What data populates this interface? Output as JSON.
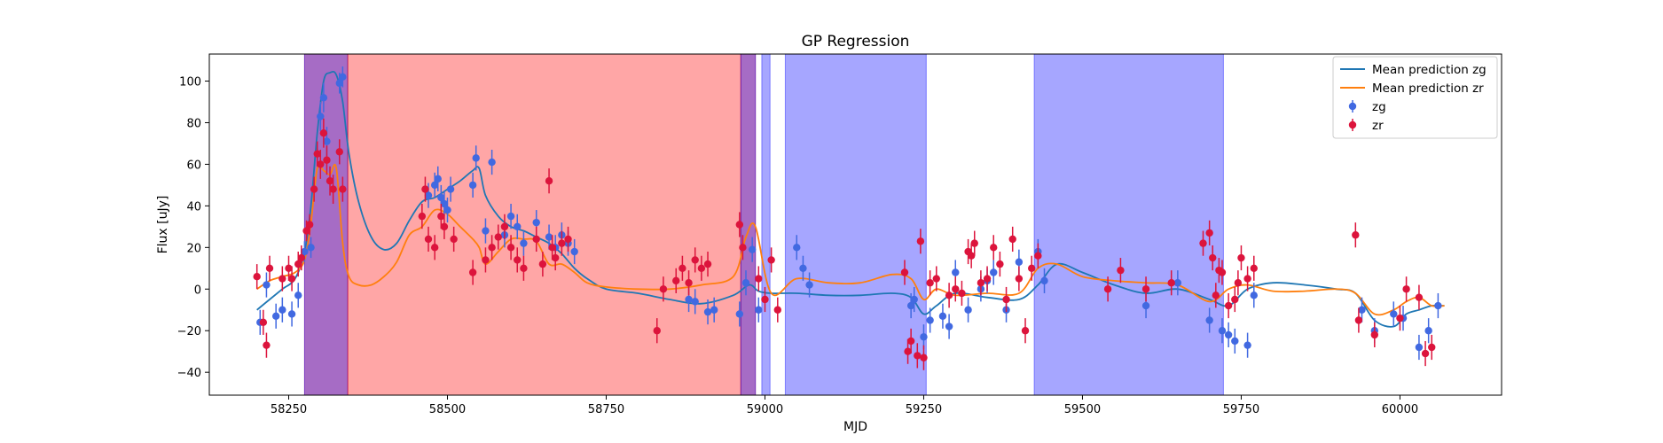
{
  "chart_data": {
    "type": "scatter",
    "title": "GP Regression",
    "xlabel": "MJD",
    "ylabel": "Flux [uJy]",
    "xlim": [
      58125,
      60160
    ],
    "ylim": [
      -51,
      113
    ],
    "x_ticks": [
      58250,
      58500,
      58750,
      59000,
      59250,
      59500,
      59750,
      60000
    ],
    "y_ticks": [
      -40,
      -20,
      0,
      20,
      40,
      60,
      80,
      100
    ],
    "grid": false,
    "legend_position": "upper right",
    "legend": [
      {
        "label": "Mean prediction zg",
        "kind": "line",
        "color": "#1f77b4"
      },
      {
        "label": "Mean prediction zr",
        "kind": "line",
        "color": "#ff7f0e"
      },
      {
        "label": "zg",
        "kind": "errorbar",
        "color": "#4169e1"
      },
      {
        "label": "zr",
        "kind": "errorbar",
        "color": "#dc143c"
      }
    ],
    "shaded_regions": [
      {
        "x0": 58275,
        "x1": 58343,
        "color": "#ff0000",
        "alpha": 0.35
      },
      {
        "x0": 58275,
        "x1": 58343,
        "color": "#0000ff",
        "alpha": 0.35
      },
      {
        "x0": 58343,
        "x1": 58962,
        "color": "#ff0000",
        "alpha": 0.35
      },
      {
        "x0": 58962,
        "x1": 58985,
        "color": "#ff0000",
        "alpha": 0.35
      },
      {
        "x0": 58962,
        "x1": 58985,
        "color": "#0000ff",
        "alpha": 0.35
      },
      {
        "x0": 58995,
        "x1": 59008,
        "color": "#0000ff",
        "alpha": 0.35
      },
      {
        "x0": 59032,
        "x1": 59254,
        "color": "#0000ff",
        "alpha": 0.35
      },
      {
        "x0": 59424,
        "x1": 59722,
        "color": "#0000ff",
        "alpha": 0.35
      }
    ],
    "series": [
      {
        "name": "Mean prediction zg",
        "type": "line",
        "color": "#1f77b4",
        "x": [
          58200,
          58220,
          58240,
          58260,
          58275,
          58285,
          58295,
          58305,
          58315,
          58325,
          58335,
          58345,
          58360,
          58380,
          58400,
          58420,
          58440,
          58460,
          58480,
          58500,
          58520,
          58540,
          58550,
          58560,
          58580,
          58600,
          58620,
          58640,
          58660,
          58680,
          58700,
          58720,
          58750,
          58800,
          58850,
          58900,
          58950,
          58975,
          58990,
          59010,
          59050,
          59100,
          59150,
          59200,
          59230,
          59250,
          59270,
          59300,
          59350,
          59400,
          59430,
          59460,
          59500,
          59550,
          59600,
          59650,
          59700,
          59730,
          59760,
          59800,
          59850,
          59900,
          59930,
          59960,
          59990,
          60010,
          60030,
          60050,
          60070
        ],
        "y": [
          -10,
          -5,
          0,
          5,
          18,
          40,
          75,
          100,
          104,
          103,
          90,
          65,
          42,
          25,
          19,
          22,
          33,
          42,
          44,
          48,
          52,
          57,
          58,
          45,
          35,
          30,
          28,
          25,
          22,
          17,
          10,
          5,
          0,
          -2,
          -5,
          -7,
          -3,
          2,
          -1,
          -2,
          -2,
          -3,
          -3,
          -2,
          -4,
          -12,
          -8,
          -2,
          -4,
          -5,
          2,
          12,
          8,
          2,
          -2,
          0,
          -5,
          -8,
          0,
          3,
          2,
          0,
          -2,
          -15,
          -18,
          -12,
          -10,
          -8,
          -8
        ]
      },
      {
        "name": "Mean prediction zr",
        "type": "line",
        "color": "#ff7f0e",
        "x": [
          58200,
          58220,
          58240,
          58260,
          58275,
          58285,
          58295,
          58305,
          58315,
          58325,
          58335,
          58345,
          58360,
          58380,
          58400,
          58420,
          58440,
          58460,
          58480,
          58500,
          58520,
          58540,
          58550,
          58560,
          58580,
          58600,
          58620,
          58640,
          58660,
          58680,
          58700,
          58720,
          58750,
          58800,
          58850,
          58900,
          58950,
          58970,
          58985,
          59010,
          59050,
          59100,
          59150,
          59200,
          59230,
          59250,
          59270,
          59300,
          59350,
          59400,
          59430,
          59460,
          59500,
          59550,
          59600,
          59650,
          59700,
          59730,
          59760,
          59800,
          59850,
          59900,
          59930,
          59960,
          59990,
          60010,
          60030,
          60050,
          60070
        ],
        "y": [
          0,
          4,
          6,
          8,
          14,
          32,
          58,
          57,
          55,
          58,
          22,
          6,
          2,
          2,
          6,
          13,
          26,
          30,
          38,
          36,
          30,
          24,
          20,
          12,
          18,
          24,
          24,
          23,
          12,
          12,
          8,
          3,
          1,
          0,
          0,
          2,
          6,
          25,
          30,
          -2,
          5,
          3,
          3,
          7,
          5,
          -5,
          0,
          -3,
          -2,
          -2,
          10,
          12,
          6,
          4,
          3,
          2,
          -6,
          0,
          2,
          -1,
          -1,
          0,
          -2,
          -12,
          -10,
          -6,
          -4,
          -8,
          -8
        ]
      },
      {
        "name": "zg",
        "type": "errorbar",
        "color": "#4169e1",
        "x": [
          58205,
          58215,
          58230,
          58240,
          58255,
          58265,
          58275,
          58285,
          58300,
          58305,
          58310,
          58330,
          58335,
          58470,
          58480,
          58485,
          58490,
          58495,
          58500,
          58505,
          58540,
          58545,
          58560,
          58570,
          58590,
          58600,
          58610,
          58620,
          58640,
          58660,
          58670,
          58680,
          58690,
          58700,
          58880,
          58890,
          58910,
          58920,
          58960,
          58970,
          58980,
          58990,
          59050,
          59060,
          59070,
          59230,
          59235,
          59250,
          59260,
          59280,
          59290,
          59300,
          59320,
          59340,
          59350,
          59360,
          59380,
          59400,
          59430,
          59440,
          59600,
          59650,
          59700,
          59720,
          59730,
          59740,
          59760,
          59770,
          59940,
          59960,
          59990,
          60005,
          60030,
          60045,
          60060
        ],
        "y": [
          -16,
          2,
          -13,
          -10,
          -12,
          -3,
          18,
          20,
          83,
          92,
          71,
          99,
          102,
          45,
          50,
          53,
          44,
          41,
          38,
          48,
          50,
          63,
          28,
          61,
          26,
          35,
          30,
          22,
          32,
          25,
          20,
          26,
          22,
          18,
          -5,
          -6,
          -11,
          -10,
          -12,
          3,
          19,
          -10,
          20,
          10,
          2,
          -8,
          -5,
          -23,
          -15,
          -13,
          -18,
          8,
          -10,
          0,
          4,
          8,
          -10,
          13,
          18,
          4,
          -8,
          3,
          -15,
          -20,
          -22,
          -25,
          -27,
          -3,
          -10,
          -20,
          -12,
          -14,
          -28,
          -20,
          -8
        ],
        "err": [
          6,
          6,
          6,
          6,
          6,
          6,
          5,
          5,
          7,
          7,
          7,
          5,
          5,
          6,
          6,
          6,
          6,
          6,
          6,
          6,
          6,
          6,
          6,
          6,
          6,
          6,
          6,
          6,
          6,
          6,
          6,
          6,
          6,
          6,
          6,
          6,
          6,
          6,
          6,
          6,
          6,
          6,
          6,
          6,
          6,
          6,
          6,
          6,
          6,
          6,
          6,
          6,
          6,
          6,
          6,
          6,
          6,
          6,
          6,
          6,
          6,
          6,
          6,
          6,
          6,
          6,
          6,
          6,
          6,
          6,
          6,
          6,
          6,
          6,
          6
        ]
      },
      {
        "name": "zr",
        "type": "errorbar",
        "color": "#dc143c",
        "x": [
          58200,
          58210,
          58215,
          58220,
          58240,
          58250,
          58255,
          58265,
          58270,
          58278,
          58283,
          58290,
          58295,
          58300,
          58305,
          58310,
          58315,
          58320,
          58330,
          58335,
          58460,
          58465,
          58470,
          58480,
          58490,
          58495,
          58510,
          58540,
          58560,
          58570,
          58580,
          58590,
          58600,
          58610,
          58620,
          58640,
          58650,
          58660,
          58665,
          58670,
          58680,
          58690,
          58830,
          58840,
          58860,
          58870,
          58880,
          58890,
          58900,
          58910,
          58960,
          58965,
          58990,
          59000,
          59010,
          59020,
          59220,
          59225,
          59230,
          59240,
          59245,
          59250,
          59260,
          59270,
          59290,
          59300,
          59310,
          59320,
          59325,
          59330,
          59340,
          59350,
          59360,
          59370,
          59380,
          59390,
          59400,
          59410,
          59420,
          59430,
          59540,
          59560,
          59600,
          59640,
          59690,
          59700,
          59705,
          59710,
          59715,
          59720,
          59730,
          59740,
          59745,
          59750,
          59760,
          59770,
          59930,
          59935,
          59960,
          60000,
          60010,
          60030,
          60040,
          60050
        ],
        "y": [
          6,
          -16,
          -27,
          10,
          5,
          10,
          5,
          12,
          15,
          28,
          31,
          48,
          65,
          60,
          75,
          62,
          52,
          48,
          66,
          48,
          35,
          48,
          24,
          20,
          35,
          30,
          24,
          8,
          14,
          20,
          25,
          30,
          20,
          14,
          10,
          24,
          12,
          52,
          20,
          15,
          22,
          24,
          -20,
          0,
          4,
          10,
          3,
          14,
          10,
          12,
          31,
          20,
          5,
          -5,
          14,
          -10,
          8,
          -30,
          -25,
          -32,
          23,
          -33,
          3,
          5,
          -3,
          0,
          -2,
          18,
          16,
          22,
          3,
          5,
          20,
          12,
          -5,
          24,
          5,
          -20,
          10,
          16,
          0,
          9,
          0,
          3,
          22,
          27,
          15,
          -3,
          9,
          8,
          -8,
          -5,
          3,
          15,
          5,
          10,
          26,
          -15,
          -22,
          -14,
          0,
          -4,
          -31,
          -28
        ],
        "err": [
          6,
          6,
          6,
          6,
          6,
          6,
          6,
          6,
          6,
          5,
          5,
          6,
          6,
          7,
          7,
          7,
          7,
          7,
          6,
          6,
          6,
          6,
          6,
          6,
          6,
          6,
          6,
          6,
          6,
          6,
          6,
          6,
          6,
          6,
          6,
          6,
          6,
          6,
          6,
          6,
          6,
          6,
          6,
          6,
          6,
          6,
          6,
          6,
          6,
          6,
          6,
          6,
          6,
          6,
          6,
          6,
          6,
          6,
          6,
          6,
          6,
          6,
          6,
          6,
          6,
          6,
          6,
          6,
          6,
          6,
          6,
          6,
          6,
          6,
          6,
          6,
          6,
          6,
          6,
          6,
          6,
          6,
          6,
          6,
          6,
          6,
          6,
          6,
          6,
          6,
          6,
          6,
          6,
          6,
          6,
          6,
          6,
          6,
          6,
          6,
          6,
          6,
          6,
          6
        ]
      }
    ]
  }
}
